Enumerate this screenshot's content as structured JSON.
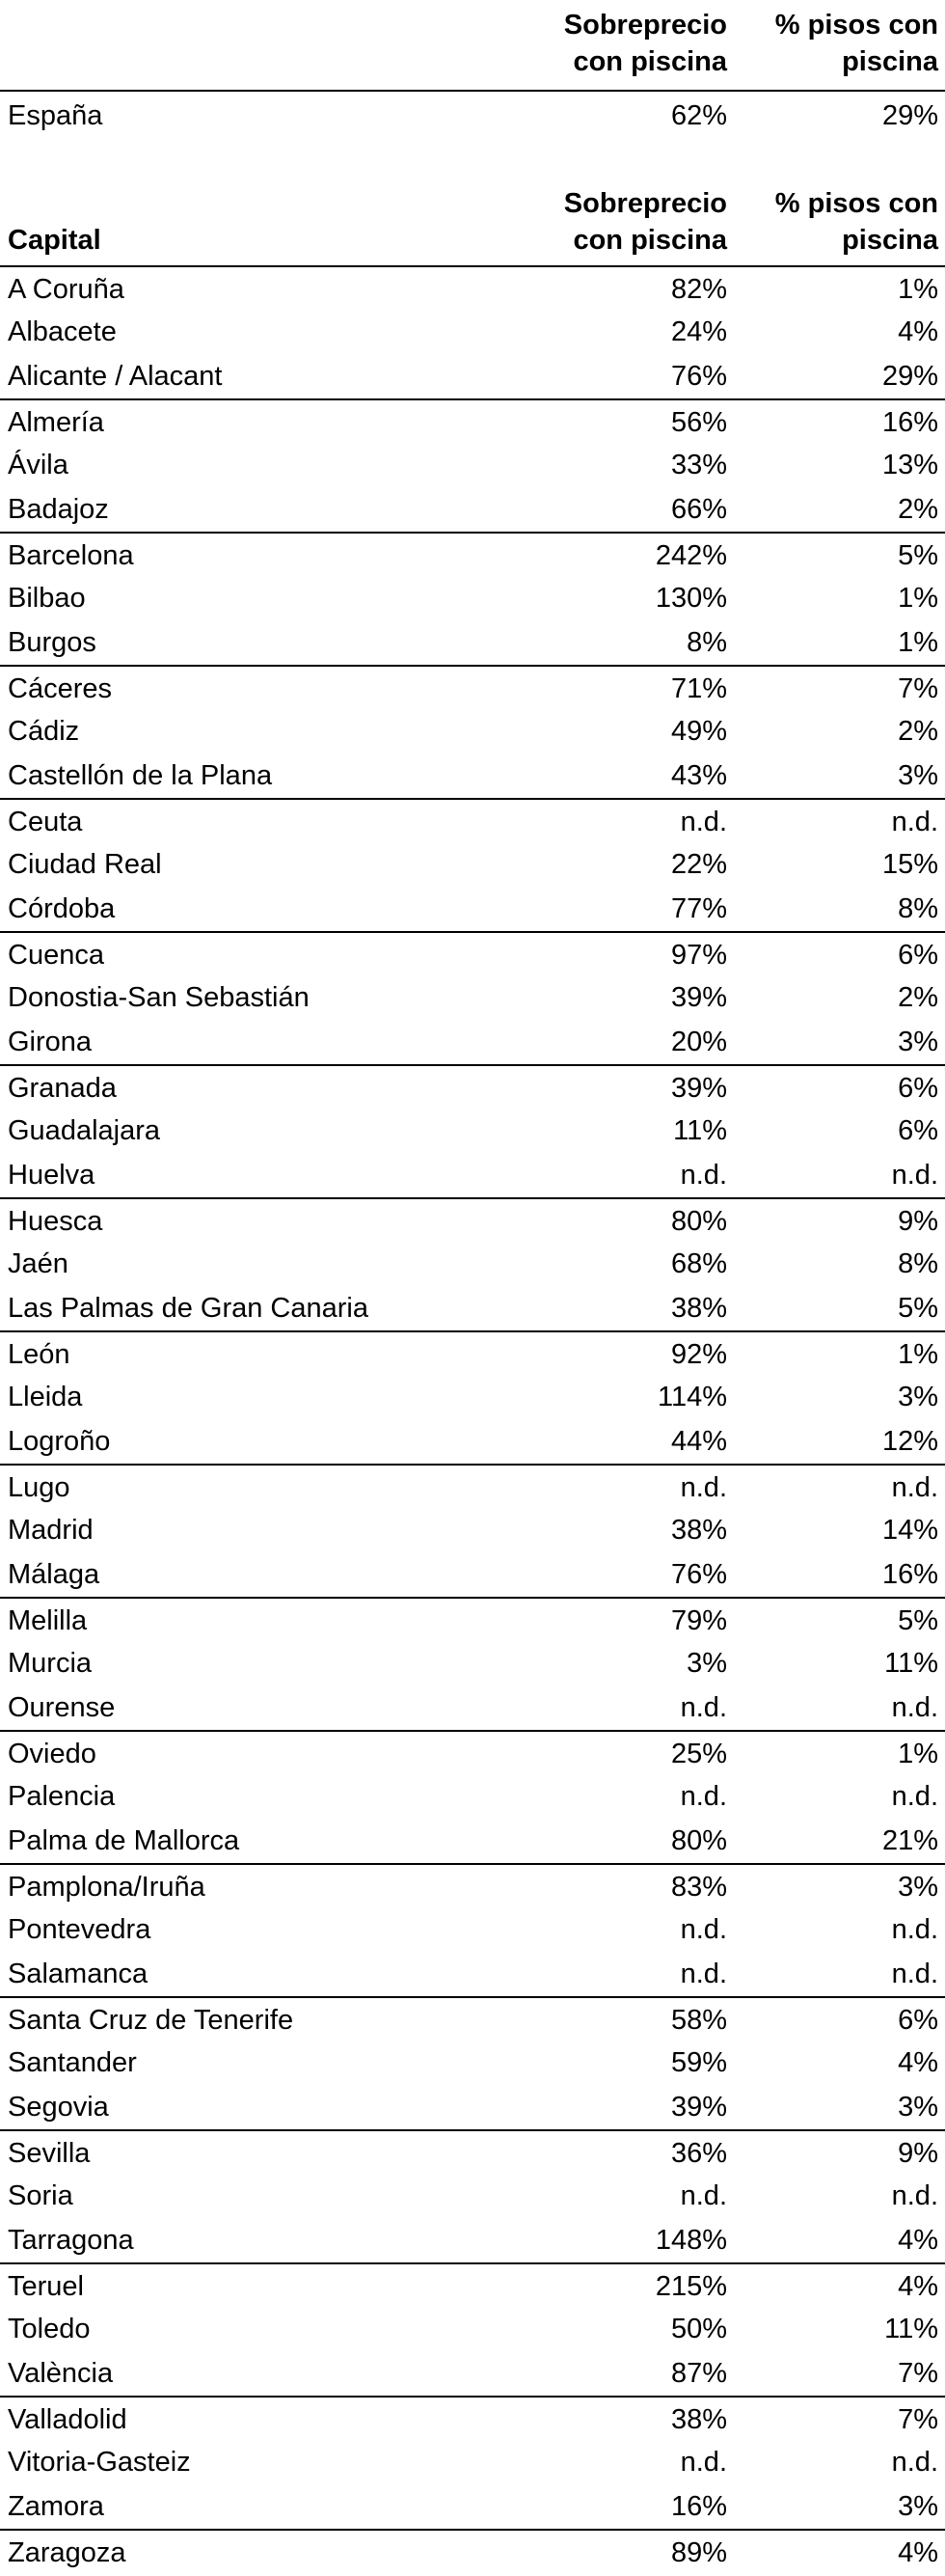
{
  "header": {
    "columns": [
      [
        "Sobreprecio",
        "con piscina"
      ],
      [
        "% pisos con",
        "piscina"
      ]
    ]
  },
  "spain": [
    "España",
    "62%",
    "29%"
  ],
  "table": {
    "label": "Capital",
    "columns": [
      [
        "Sobreprecio",
        "con piscina"
      ],
      [
        "% pisos con",
        "piscina"
      ]
    ],
    "rows": [
      [
        "A Coruña",
        "82%",
        "1%"
      ],
      [
        "Albacete",
        "24%",
        "4%"
      ],
      [
        "Alicante / Alacant",
        "76%",
        "29%"
      ],
      [
        "Almería",
        "56%",
        "16%"
      ],
      [
        "Ávila",
        "33%",
        "13%"
      ],
      [
        "Badajoz",
        "66%",
        "2%"
      ],
      [
        "Barcelona",
        "242%",
        "5%"
      ],
      [
        "Bilbao",
        "130%",
        "1%"
      ],
      [
        "Burgos",
        "8%",
        "1%"
      ],
      [
        "Cáceres",
        "71%",
        "7%"
      ],
      [
        "Cádiz",
        "49%",
        "2%"
      ],
      [
        "Castellón de la Plana",
        "43%",
        "3%"
      ],
      [
        "Ceuta",
        "n.d.",
        "n.d."
      ],
      [
        "Ciudad Real",
        "22%",
        "15%"
      ],
      [
        "Córdoba",
        "77%",
        "8%"
      ],
      [
        "Cuenca",
        "97%",
        "6%"
      ],
      [
        "Donostia-San Sebastián",
        "39%",
        "2%"
      ],
      [
        "Girona",
        "20%",
        "3%"
      ],
      [
        "Granada",
        "39%",
        "6%"
      ],
      [
        "Guadalajara",
        "11%",
        "6%"
      ],
      [
        "Huelva",
        "n.d.",
        "n.d."
      ],
      [
        "Huesca",
        "80%",
        "9%"
      ],
      [
        "Jaén",
        "68%",
        "8%"
      ],
      [
        "Las Palmas de Gran Canaria",
        "38%",
        "5%"
      ],
      [
        "León",
        "92%",
        "1%"
      ],
      [
        "Lleida",
        "114%",
        "3%"
      ],
      [
        "Logroño",
        "44%",
        "12%"
      ],
      [
        "Lugo",
        "n.d.",
        "n.d."
      ],
      [
        "Madrid",
        "38%",
        "14%"
      ],
      [
        "Málaga",
        "76%",
        "16%"
      ],
      [
        "Melilla",
        "79%",
        "5%"
      ],
      [
        "Murcia",
        "3%",
        "11%"
      ],
      [
        "Ourense",
        "n.d.",
        "n.d."
      ],
      [
        "Oviedo",
        "25%",
        "1%"
      ],
      [
        "Palencia",
        "n.d.",
        "n.d."
      ],
      [
        "Palma de Mallorca",
        "80%",
        "21%"
      ],
      [
        "Pamplona/Iruña",
        "83%",
        "3%"
      ],
      [
        "Pontevedra",
        "n.d.",
        "n.d."
      ],
      [
        "Salamanca",
        "n.d.",
        "n.d."
      ],
      [
        "Santa Cruz de Tenerife",
        "58%",
        "6%"
      ],
      [
        "Santander",
        "59%",
        "4%"
      ],
      [
        "Segovia",
        "39%",
        "3%"
      ],
      [
        "Sevilla",
        "36%",
        "9%"
      ],
      [
        "Soria",
        "n.d.",
        "n.d."
      ],
      [
        "Tarragona",
        "148%",
        "4%"
      ],
      [
        "Teruel",
        "215%",
        "4%"
      ],
      [
        "Toledo",
        "50%",
        "11%"
      ],
      [
        "València",
        "87%",
        "7%"
      ],
      [
        "Valladolid",
        "38%",
        "7%"
      ],
      [
        "Vitoria-Gasteiz",
        "n.d.",
        "n.d."
      ],
      [
        "Zamora",
        "16%",
        "3%"
      ],
      [
        "Zaragoza",
        "89%",
        "4%"
      ]
    ]
  }
}
